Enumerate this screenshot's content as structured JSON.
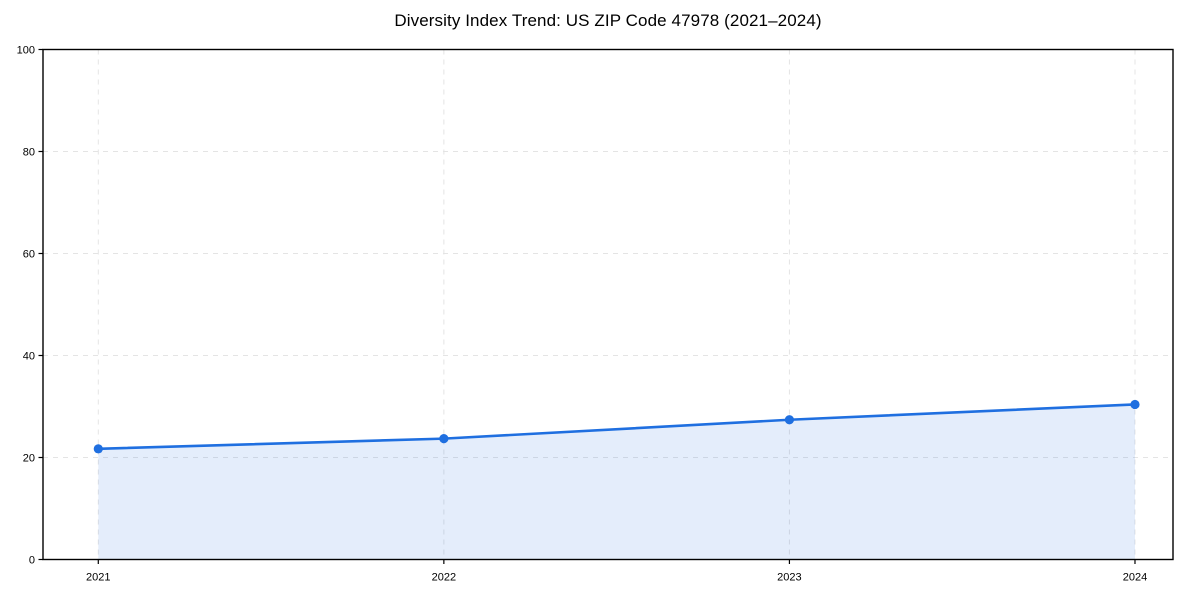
{
  "figure": {
    "background": "#ffffff"
  },
  "chart_data": {
    "type": "area",
    "title": "Diversity Index Trend: US ZIP Code 47978 (2021–2024)",
    "series": [
      {
        "name": "Diversity Index",
        "x": [
          2021,
          2022,
          2023,
          2024
        ],
        "values": [
          21.7,
          23.7,
          27.4,
          30.4
        ]
      }
    ],
    "xlabel": "",
    "ylabel": "",
    "xticks": [
      "2021",
      "2022",
      "2023",
      "2024"
    ],
    "yticks": [
      0,
      20,
      40,
      60,
      80,
      100
    ],
    "xlim": [
      2020.84,
      2024.11
    ],
    "ylim": [
      0,
      100
    ],
    "grid": "dashed-both-axes",
    "legend": "none",
    "marker": "circle",
    "colors": {
      "line": "#1f6fe0",
      "fill": "#1f6fe0",
      "grid": "#e4e4e4",
      "spine": "#000000",
      "tick_text": "#000000"
    },
    "fill_opacity": 0.12
  }
}
